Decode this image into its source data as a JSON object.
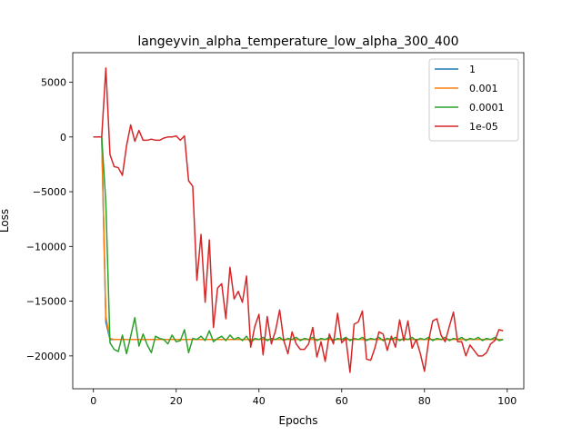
{
  "chart_data": {
    "type": "line",
    "title": "langeyvin_alpha_temperature_low_alpha_300_400",
    "xlabel": "Epochs",
    "ylabel": "Loss",
    "xlim": [
      -5,
      104
    ],
    "ylim": [
      -23000,
      7700
    ],
    "xticks": [
      0,
      20,
      40,
      60,
      80,
      100
    ],
    "yticks": [
      5000,
      0,
      -5000,
      -10000,
      -15000,
      -20000
    ],
    "legend_position": "top-right",
    "series": [
      {
        "name": "1",
        "color": "#1f77b4",
        "values": [
          0,
          0,
          0,
          -16900,
          -18500,
          -18500,
          -18500,
          -18500,
          -18500,
          -18500,
          -18500,
          -18500,
          -18500,
          -18500,
          -18500,
          -18500,
          -18500,
          -18500,
          -18500,
          -18500,
          -18500,
          -18500,
          -18500,
          -18500,
          -18500,
          -18500,
          -18500,
          -18500,
          -18500,
          -18500,
          -18500,
          -18500,
          -18500,
          -18500,
          -18500,
          -18500,
          -18500,
          -18500,
          -18500,
          -18500,
          -18500,
          -18500,
          -18500,
          -18500,
          -18500,
          -18500,
          -18500,
          -18500,
          -18500,
          -18500,
          -18500,
          -18500,
          -18500,
          -18500,
          -18500,
          -18500,
          -18500,
          -18500,
          -18500,
          -18500,
          -18500,
          -18500,
          -18500,
          -18500,
          -18500,
          -18500,
          -18500,
          -18500,
          -18500,
          -18500,
          -18500,
          -18500,
          -18500,
          -18500,
          -18500,
          -18500,
          -18500,
          -18500,
          -18500,
          -18500,
          -18500,
          -18500,
          -18500,
          -18500,
          -18500,
          -18500,
          -18500,
          -18500,
          -18500,
          -18500,
          -18500,
          -18500,
          -18500,
          -18500,
          -18500,
          -18500,
          -18500,
          -18500,
          -18500,
          -18500
        ]
      },
      {
        "name": "0.001",
        "color": "#ff7f0e",
        "values": [
          0,
          0,
          0,
          -16400,
          -18400,
          -18500,
          -18500,
          -18500,
          -18500,
          -18500,
          -18500,
          -18500,
          -18500,
          -18500,
          -18500,
          -18500,
          -18500,
          -18500,
          -18500,
          -18500,
          -18500,
          -18500,
          -18500,
          -18500,
          -18500,
          -18500,
          -18500,
          -18500,
          -18500,
          -18500,
          -18500,
          -18500,
          -18500,
          -18500,
          -18500,
          -18500,
          -18500,
          -18500,
          -18500,
          -18500,
          -18500,
          -18500,
          -18500,
          -18500,
          -18500,
          -18500,
          -18500,
          -18500,
          -18500,
          -18500,
          -18500,
          -18500,
          -18500,
          -18500,
          -18500,
          -18500,
          -18500,
          -18500,
          -18500,
          -18500,
          -18500,
          -18500,
          -18500,
          -18500,
          -18500,
          -18500,
          -18500,
          -18500,
          -18500,
          -18500,
          -18500,
          -18500,
          -18500,
          -18500,
          -18500,
          -18500,
          -18500,
          -18500,
          -18500,
          -18500,
          -18500,
          -18500,
          -18500,
          -18500,
          -18500,
          -18500,
          -18500,
          -18500,
          -18500,
          -18500,
          -18500,
          -18500,
          -18500,
          -18500,
          -18500,
          -18500,
          -18500,
          -18500,
          -18500,
          -18500
        ]
      },
      {
        "name": "0.0001",
        "color": "#2ca02c",
        "values": [
          0,
          0,
          0,
          -6000,
          -18800,
          -19400,
          -19600,
          -18100,
          -19800,
          -18200,
          -16500,
          -19100,
          -18000,
          -19000,
          -19700,
          -18200,
          -18400,
          -18500,
          -18900,
          -18100,
          -18700,
          -18600,
          -17600,
          -19700,
          -18400,
          -18500,
          -18200,
          -18600,
          -17700,
          -18700,
          -18400,
          -18200,
          -18600,
          -18100,
          -18500,
          -18300,
          -18600,
          -18200,
          -18800,
          -18400,
          -18500,
          -18300,
          -18600,
          -18400,
          -18500,
          -18300,
          -18600,
          -18400,
          -18500,
          -18300,
          -18600,
          -18400,
          -18500,
          -18300,
          -18600,
          -18400,
          -18500,
          -18300,
          -18600,
          -18400,
          -18500,
          -18300,
          -18600,
          -18400,
          -18500,
          -18300,
          -18600,
          -18400,
          -18500,
          -18300,
          -18600,
          -18400,
          -18500,
          -18300,
          -18600,
          -18400,
          -18500,
          -18300,
          -18600,
          -18400,
          -18500,
          -18300,
          -18600,
          -18400,
          -18500,
          -18300,
          -18600,
          -18400,
          -18500,
          -18300,
          -18600,
          -18400,
          -18500,
          -18300,
          -18600,
          -18400,
          -18500,
          -18300,
          -18600,
          -18500
        ]
      },
      {
        "name": "1e-05",
        "color": "#d62728",
        "values": [
          0,
          0,
          0,
          6300,
          -1600,
          -2700,
          -2800,
          -3500,
          -800,
          1100,
          -400,
          600,
          -300,
          -300,
          -200,
          -300,
          -300,
          -100,
          0,
          0,
          100,
          -300,
          100,
          -4000,
          -4500,
          -13100,
          -8900,
          -15100,
          -9400,
          -17400,
          -13800,
          -13400,
          -16600,
          -11900,
          -14800,
          -14100,
          -15100,
          -12700,
          -19200,
          -17300,
          -16200,
          -19900,
          -16400,
          -18900,
          -17700,
          -15800,
          -18600,
          -19800,
          -17800,
          -18900,
          -19400,
          -19400,
          -18900,
          -17400,
          -20100,
          -18700,
          -20500,
          -18000,
          -18900,
          -16100,
          -18800,
          -18400,
          -21500,
          -17100,
          -16900,
          -15900,
          -20300,
          -20400,
          -19300,
          -17800,
          -18000,
          -19500,
          -18200,
          -19200,
          -16700,
          -18600,
          -16800,
          -19300,
          -18500,
          -19800,
          -21400,
          -18600,
          -16800,
          -16600,
          -18100,
          -18700,
          -17300,
          -16000,
          -18700,
          -18700,
          -20000,
          -19000,
          -19500,
          -20000,
          -20000,
          -19700,
          -18900,
          -18600,
          -17600,
          -17700
        ]
      }
    ]
  }
}
